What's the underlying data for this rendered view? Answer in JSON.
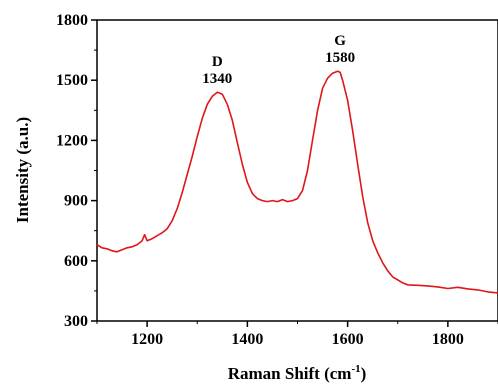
{
  "chart_data": {
    "type": "line",
    "xlabel_main": "Raman Shift (cm",
    "xlabel_sup": "-1",
    "xlabel_close": ")",
    "ylabel": "Intensity (a.u.)",
    "xlim": [
      1100,
      1900
    ],
    "ylim": [
      300,
      1800
    ],
    "xticks": [
      1200,
      1400,
      1600,
      1800
    ],
    "yticks": [
      300,
      600,
      900,
      1200,
      1500,
      1800
    ],
    "grid": false,
    "line_color": "#e0161b",
    "annotations": [
      {
        "label": "D",
        "value": "1340",
        "x": 1340,
        "y": 1440
      },
      {
        "label": "G",
        "value": "1580",
        "x": 1585,
        "y": 1545
      }
    ],
    "series": [
      {
        "x": [
          1100,
          1110,
          1120,
          1130,
          1140,
          1150,
          1160,
          1170,
          1180,
          1190,
          1195,
          1200,
          1210,
          1220,
          1230,
          1240,
          1250,
          1260,
          1270,
          1280,
          1290,
          1300,
          1310,
          1320,
          1330,
          1340,
          1350,
          1360,
          1370,
          1380,
          1390,
          1400,
          1410,
          1420,
          1430,
          1440,
          1450,
          1460,
          1470,
          1480,
          1490,
          1500,
          1510,
          1520,
          1530,
          1540,
          1550,
          1560,
          1570,
          1580,
          1585,
          1590,
          1600,
          1610,
          1620,
          1630,
          1640,
          1650,
          1660,
          1670,
          1680,
          1690,
          1700,
          1710,
          1720,
          1740,
          1760,
          1780,
          1800,
          1820,
          1840,
          1860,
          1880,
          1900
        ],
        "y": [
          680,
          665,
          660,
          650,
          645,
          655,
          665,
          670,
          680,
          700,
          730,
          700,
          710,
          725,
          740,
          760,
          800,
          860,
          940,
          1030,
          1120,
          1220,
          1310,
          1380,
          1420,
          1440,
          1430,
          1380,
          1300,
          1190,
          1080,
          990,
          935,
          910,
          900,
          895,
          900,
          895,
          905,
          895,
          900,
          910,
          950,
          1050,
          1200,
          1350,
          1460,
          1510,
          1535,
          1545,
          1540,
          1500,
          1400,
          1250,
          1080,
          920,
          790,
          700,
          640,
          590,
          550,
          520,
          505,
          490,
          480,
          478,
          475,
          470,
          462,
          468,
          460,
          455,
          445,
          440
        ]
      }
    ]
  }
}
